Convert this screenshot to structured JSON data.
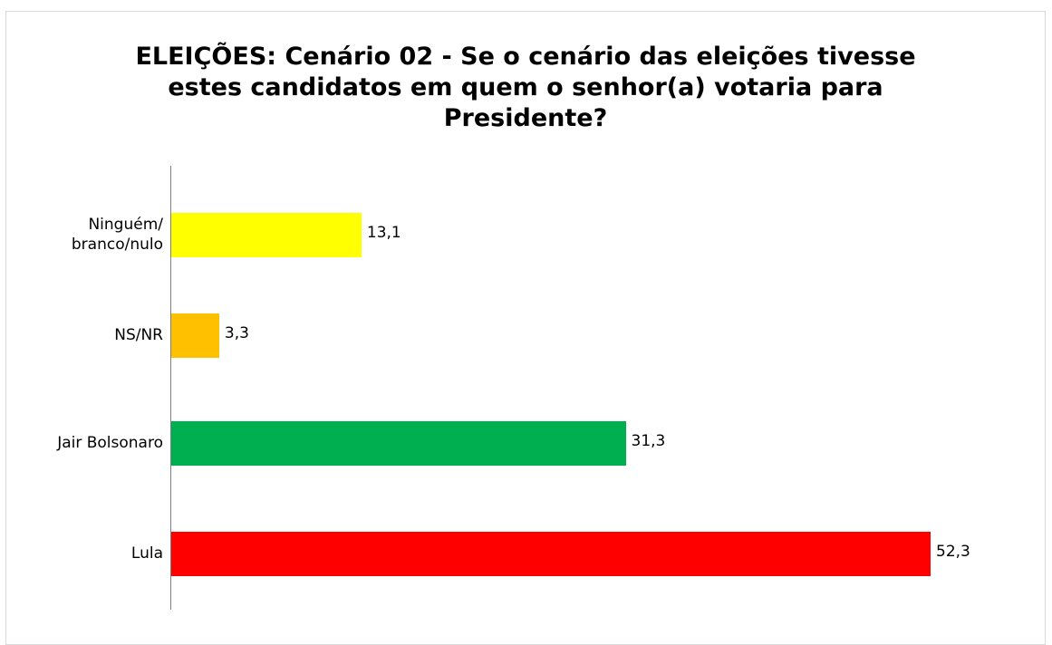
{
  "chart_data": {
    "type": "bar",
    "orientation": "horizontal",
    "title": "ELEIÇÕES: Cenário 02 - Se o cenário das eleições tivesse estes candidatos em quem o senhor(a) votaria para Presidente?",
    "categories": [
      "Ninguém/ branco/nulo",
      "NS/NR",
      "Jair Bolsonaro",
      "Lula"
    ],
    "values": [
      13.1,
      3.3,
      31.3,
      52.3
    ],
    "value_labels": [
      "13,1",
      "3,3",
      "31,3",
      "52,3"
    ],
    "colors": [
      "#ffff00",
      "#ffc000",
      "#00b050",
      "#ff0000"
    ]
  }
}
